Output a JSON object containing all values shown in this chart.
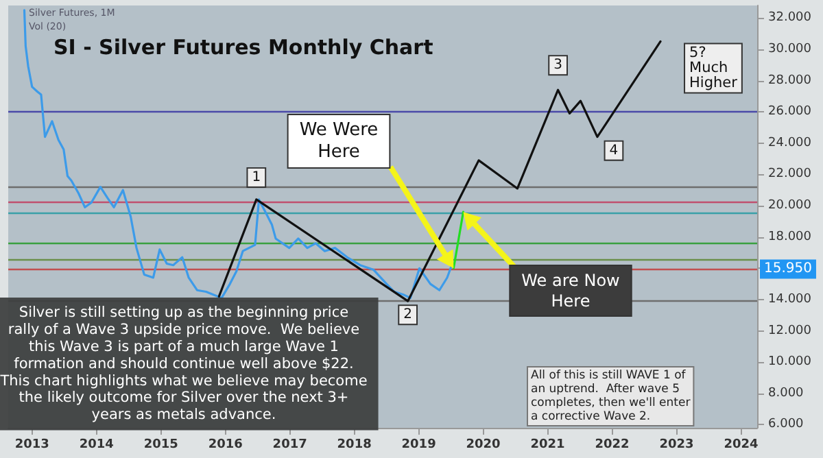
{
  "chart_data": {
    "type": "line",
    "title": "SI - Silver Futures Monthly Chart",
    "xlim": [
      2012.63,
      2024.25
    ],
    "xticks": [
      2013,
      2014,
      2015,
      2016,
      2017,
      2018,
      2019,
      2020,
      2021,
      2022,
      2023,
      2024
    ],
    "ylim": [
      5.8,
      32.8
    ],
    "yticks": [
      {
        "value": 6,
        "label": "6.000"
      },
      {
        "value": 8,
        "label": "8.000"
      },
      {
        "value": 10,
        "label": "10.000"
      },
      {
        "value": 12,
        "label": "12.000"
      },
      {
        "value": 14,
        "label": "14.000"
      },
      {
        "value": 16,
        "label": null
      },
      {
        "value": 18,
        "label": "18.000"
      },
      {
        "value": 20,
        "label": "20.000"
      },
      {
        "value": 22,
        "label": "22.000"
      },
      {
        "value": 24,
        "label": "24.000"
      },
      {
        "value": 26,
        "label": "26.000"
      },
      {
        "value": 28,
        "label": "28.000"
      },
      {
        "value": 30,
        "label": "30.000"
      },
      {
        "value": 32,
        "label": "32.000"
      }
    ],
    "grid": false,
    "marker": "none",
    "line_style": "solid",
    "series": [
      {
        "color": "#3d9be9",
        "x": [
          2012.88,
          2012.9,
          2012.94,
          2013.0,
          2013.08,
          2013.14,
          2013.2,
          2013.31,
          2013.41,
          2013.49,
          2013.55,
          2013.61,
          2013.72,
          2013.82,
          2013.92,
          2014.06,
          2014.17,
          2014.27,
          2014.41,
          2014.53,
          2014.62,
          2014.74,
          2014.88,
          2014.98,
          2015.09,
          2015.19,
          2015.33,
          2015.43,
          2015.56,
          2015.7,
          2015.84,
          2015.94,
          2016.07,
          2016.17,
          2016.27,
          2016.46,
          2016.52,
          2016.72,
          2016.78,
          2016.99,
          2017.13,
          2017.27,
          2017.4,
          2017.54,
          2017.7,
          2017.89,
          2018.09,
          2018.3,
          2018.5,
          2018.62,
          2018.77,
          2018.87,
          2019.01,
          2019.18,
          2019.32,
          2019.44,
          2019.52
        ],
        "values": [
          32.5,
          30.2,
          28.9,
          27.6,
          27.3,
          27.1,
          24.4,
          25.4,
          24.2,
          23.6,
          21.9,
          21.6,
          20.8,
          19.9,
          20.2,
          21.2,
          20.5,
          19.9,
          21.0,
          19.3,
          17.3,
          15.6,
          15.4,
          17.2,
          16.3,
          16.2,
          16.7,
          15.4,
          14.6,
          14.5,
          null,
          14.1,
          15.0,
          15.8,
          17.1,
          17.5,
          20.4,
          18.8,
          17.9,
          17.3,
          17.9,
          17.3,
          17.6,
          17.1,
          17.3,
          16.7,
          16.2,
          15.9,
          15.0,
          14.5,
          14.3,
          14.1,
          16.0,
          15.0,
          14.6,
          15.4,
          16.3
        ]
      },
      {
        "color": "#111111",
        "x": [
          2015.9,
          2016.48,
          2018.83,
          2019.93,
          2020.53,
          2021.16,
          2021.34,
          2021.51,
          2021.77,
          2022.75
        ],
        "values": [
          14.2,
          20.4,
          13.9,
          22.9,
          21.1,
          27.4,
          25.9,
          26.7,
          24.4,
          30.5
        ]
      },
      {
        "color": "#22dd22",
        "x": [
          2019.54,
          2019.69
        ],
        "values": [
          16.0,
          19.6
        ]
      }
    ],
    "ref_lines": [
      {
        "axis": "y",
        "value": 26.0,
        "color": "#4a4aa8"
      },
      {
        "axis": "y",
        "value": 21.2,
        "color": "#6e6e6e"
      },
      {
        "axis": "y",
        "value": 20.2,
        "color": "#c0506e"
      },
      {
        "axis": "y",
        "value": 19.5,
        "color": "#3aa0a8"
      },
      {
        "axis": "y",
        "value": 17.6,
        "color": "#3aa040"
      },
      {
        "axis": "y",
        "value": 16.6,
        "color": "#6a8f4a"
      },
      {
        "axis": "y",
        "value": 15.95,
        "label": "15.950",
        "color": "#c05050"
      },
      {
        "axis": "y",
        "value": 13.9,
        "color": "#6e6e6e"
      }
    ],
    "annotations": [
      "Silver Futures, 1M",
      "Vol (20)",
      {
        "text": "1",
        "x": 2016.48,
        "y": 20.4
      },
      {
        "text": "2",
        "x": 2018.83,
        "y": 13.9
      },
      {
        "text": "3",
        "x": 2021.16,
        "y": 27.4
      },
      {
        "text": "4",
        "x": 2021.77,
        "y": 24.4
      },
      {
        "text": "5?\nMuch\nHigher",
        "x": 2022.75,
        "y": 30.5
      },
      "We Were\nHere",
      "We are Now\nHere",
      "Silver is still setting up as the beginning price\nrally of a Wave 3 upside price move.  We believe\nthis Wave 3 is part of a much large Wave 1\nformation and should continue well above $22.\nThis chart highlights what we believe may become\nthe likely outcome for Silver over the next 3+\nyears as metals advance.",
      "All of this is still WAVE 1 of\nan uptrend.  After wave 5\ncompletes, then we'll enter\na corrective Wave 2."
    ]
  }
}
